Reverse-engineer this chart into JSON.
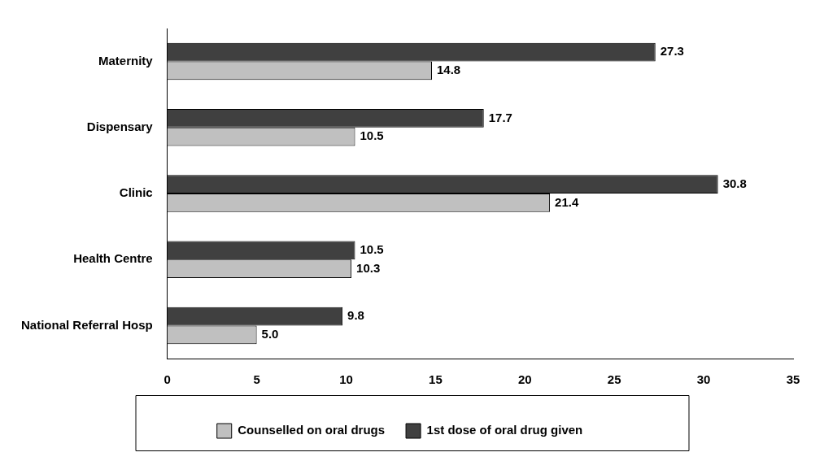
{
  "chart_data": {
    "type": "bar",
    "orientation": "horizontal",
    "categories": [
      "Maternity",
      "Dispensary",
      "Clinic",
      "Health Centre",
      "National Referral Hosp"
    ],
    "series": [
      {
        "name": "1st dose of oral drug given",
        "color": "#404040",
        "values": [
          27.3,
          17.7,
          30.8,
          10.5,
          9.8
        ],
        "value_labels": [
          "27.3",
          "17.7",
          "30.8",
          "10.5",
          "9.8"
        ]
      },
      {
        "name": "Counselled on oral drugs",
        "color": "#c0c0c0",
        "values": [
          14.8,
          10.5,
          21.4,
          10.3,
          5.0
        ],
        "value_labels": [
          "14.8",
          "10.5",
          "21.4",
          "10.3",
          "5.0"
        ]
      }
    ],
    "xlim": [
      0,
      35
    ],
    "xticks": [
      0,
      5,
      10,
      15,
      20,
      25,
      30,
      35
    ],
    "grid": false,
    "legend": "bottom"
  }
}
